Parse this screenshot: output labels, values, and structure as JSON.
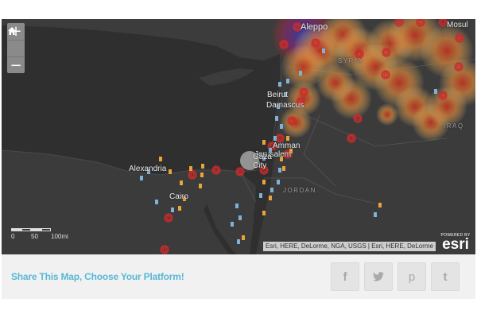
{
  "map": {
    "labels": {
      "aleppo": "Aleppo",
      "mosul": "Mosul",
      "syria": "SYRIA",
      "iraq": "IRAQ",
      "beirut": "Beirut",
      "damascus": "Damascus",
      "amman": "Amman",
      "jerusalem": "Jerusalem",
      "gaza_line1": "Gaza",
      "gaza_line2": "City",
      "alexandria": "Alexandria",
      "cairo": "Cairo",
      "jordan": "JORDAN"
    },
    "scale_ticks": [
      "0",
      "50",
      "100mi"
    ],
    "attribution": "Esri, HERE, DeLorme, NGA, USGS | Esri, HERE, DeLorme",
    "powered_by": "POWERED BY",
    "esri_logo": "esri",
    "colors": {
      "land": "#3b3b3b",
      "sea": "#2f2f2f",
      "heat_core": "#2e3fa8",
      "heat_mid": "#c8301e",
      "heat_outer": "#e9c070",
      "marker_blue": "#7fb3d5",
      "marker_orange": "#e8a33a",
      "marker_red": "#cc2b2b"
    }
  },
  "zoom": {
    "in": "+",
    "out": "−"
  },
  "share": {
    "title": "Share This Map, Choose Your Platform!",
    "buttons": [
      {
        "label": "f",
        "icon": "facebook-icon"
      },
      {
        "label": "🐦",
        "icon": "twitter-icon"
      },
      {
        "label": "p",
        "icon": "pinterest-icon"
      },
      {
        "label": "t",
        "icon": "tumblr-icon"
      }
    ]
  }
}
